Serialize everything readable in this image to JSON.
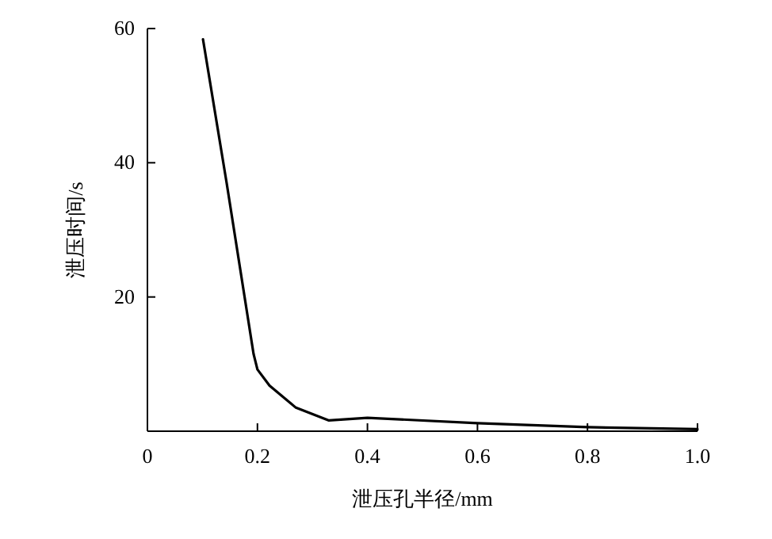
{
  "chart_data": {
    "type": "line",
    "xlabel": "泄压孔半径/mm",
    "ylabel": "泄压时间/s",
    "x": [
      0.101,
      0.144,
      0.193,
      0.2,
      0.222,
      0.27,
      0.33,
      0.4,
      0.6,
      0.8,
      1.0
    ],
    "series": [
      {
        "color": "#000000",
        "values": [
          58.4,
          37,
          11.5,
          9.2,
          6.8,
          3.5,
          1.6,
          2.0,
          1.2,
          0.6,
          0.3
        ]
      }
    ],
    "xlim": [
      0,
      1.0
    ],
    "xticks": [
      0,
      0.2,
      0.4,
      0.6,
      0.8,
      {
        "value": 1.0,
        "label": "1.0"
      }
    ],
    "ylim": [
      0,
      60
    ],
    "yticks": [
      20,
      40,
      60
    ],
    "grid": false,
    "marker": "none",
    "line_style": "solid"
  }
}
